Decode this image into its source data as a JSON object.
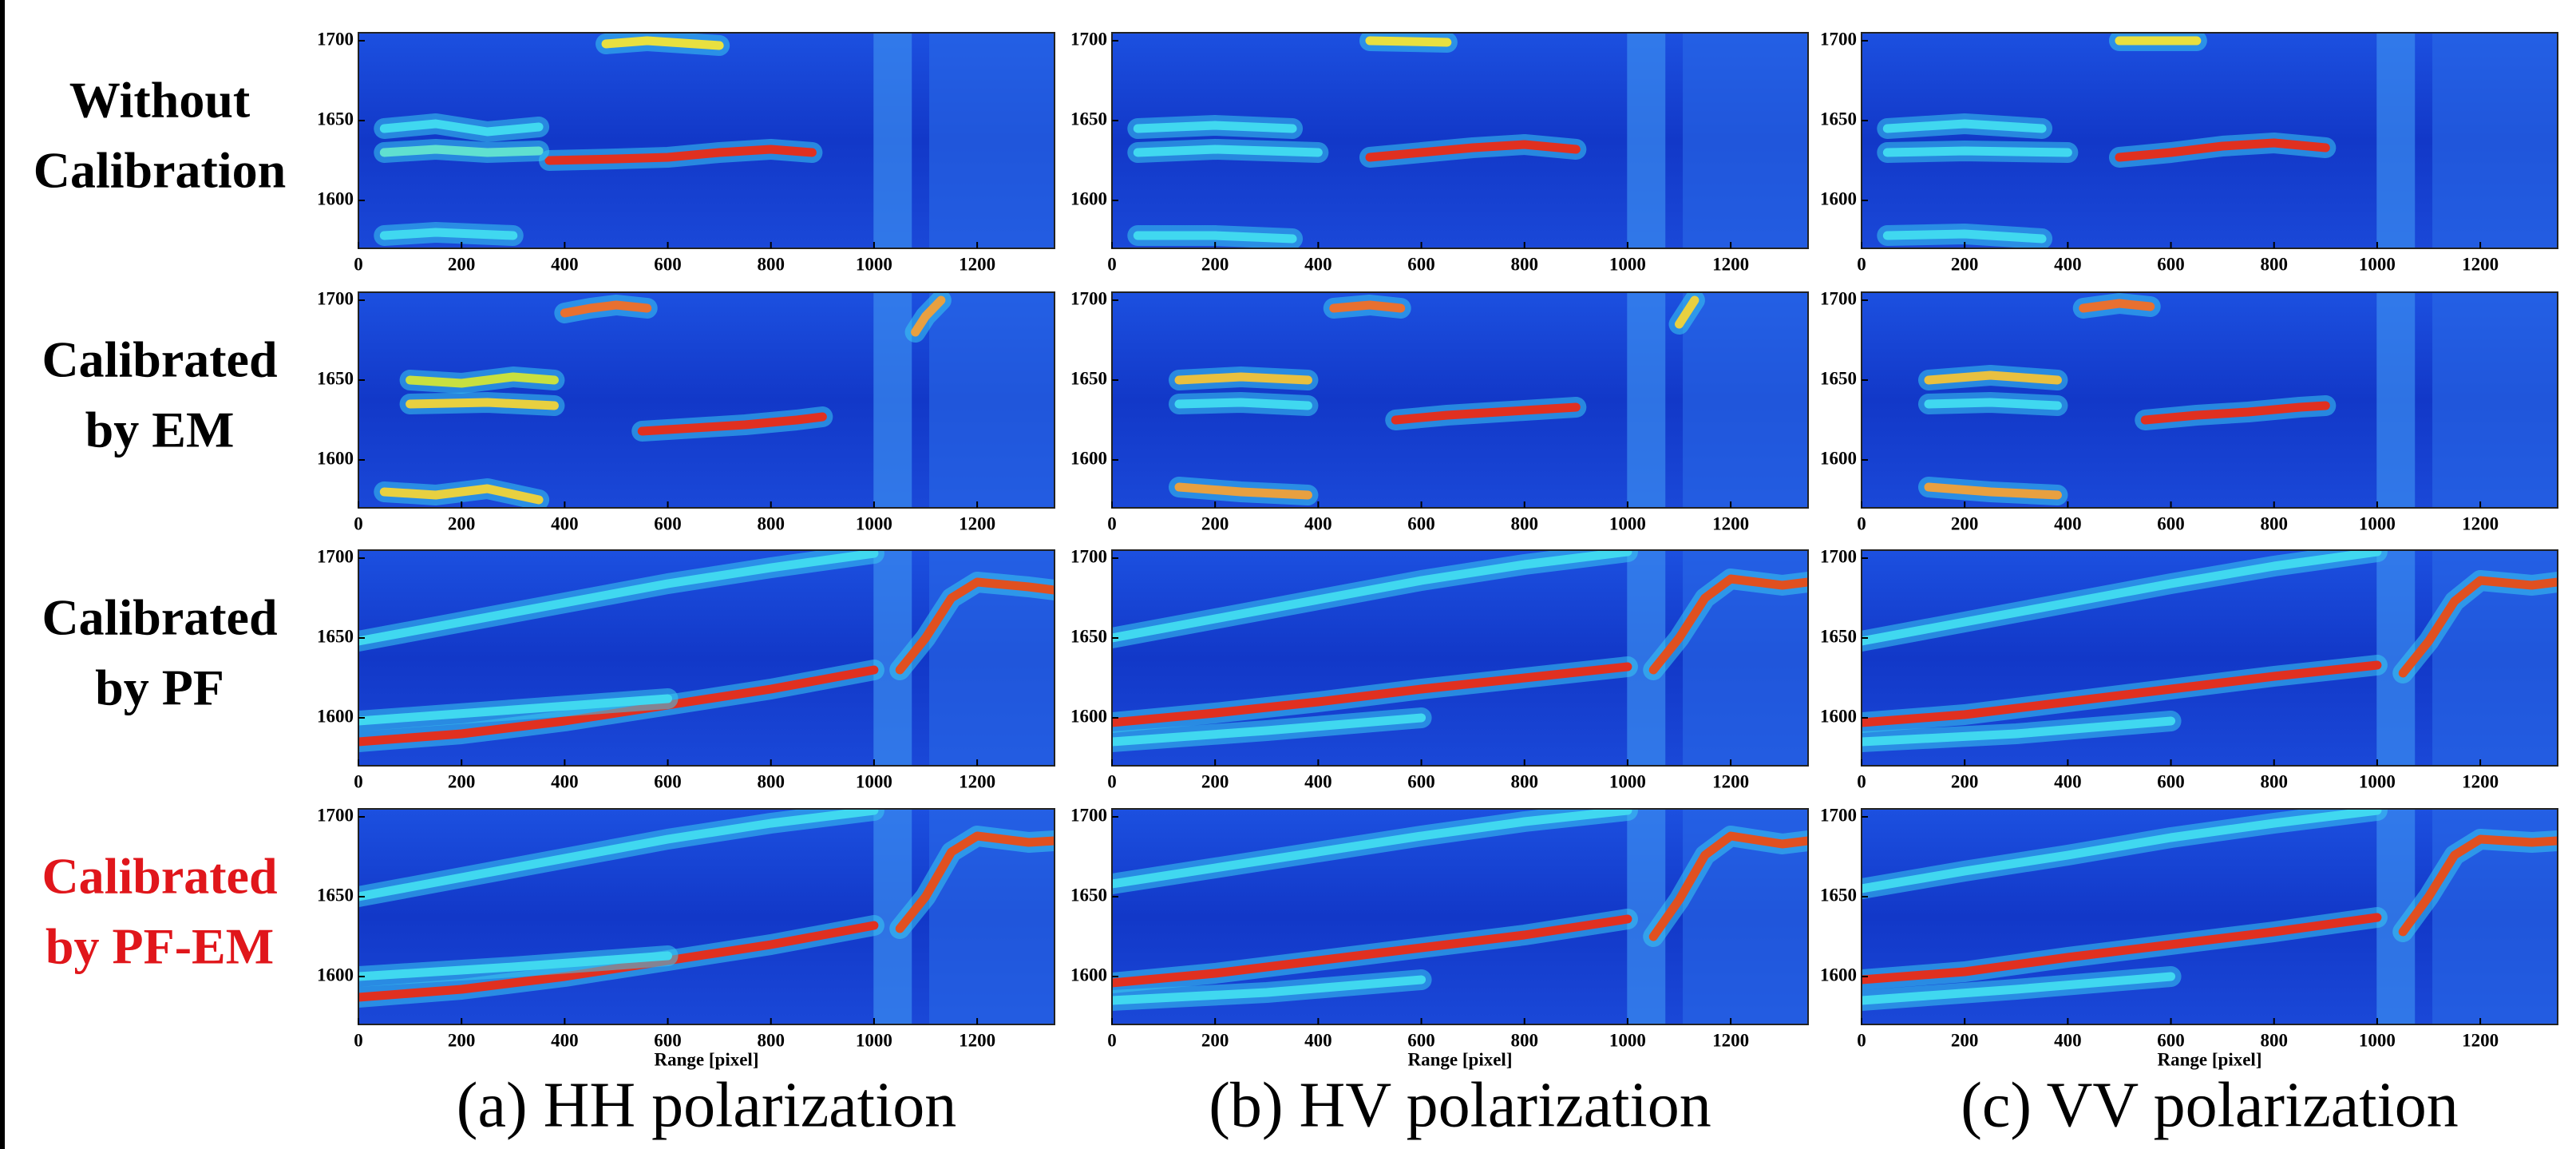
{
  "row_labels": [
    {
      "lines": [
        "Without",
        "Calibration"
      ],
      "color": "#000000"
    },
    {
      "lines": [
        "Calibrated",
        "by EM"
      ],
      "color": "#000000"
    },
    {
      "lines": [
        "Calibrated",
        "by PF"
      ],
      "color": "#000000"
    },
    {
      "lines": [
        "Calibrated",
        "by PF-EM"
      ],
      "color": "#e0161b"
    }
  ],
  "column_titles": [
    "(a) HH polarization",
    "(b) HV polarization",
    "(c) VV polarization"
  ],
  "chart_data": [
    {
      "type": "heatmap",
      "xlim": [
        0,
        1350
      ],
      "ylim": [
        1570,
        1705
      ],
      "xticks": [
        0,
        200,
        400,
        600,
        800,
        1000,
        1200
      ],
      "yticks": [
        1600,
        1650,
        1700
      ],
      "tracks": [
        {
          "x": [
            370,
            500,
            600,
            700,
            800,
            880
          ],
          "y": [
            1625,
            1626,
            1627,
            1630,
            1632,
            1630
          ],
          "color": "#e03020"
        },
        {
          "x": [
            50,
            150,
            250,
            350
          ],
          "y": [
            1645,
            1648,
            1643,
            1646
          ],
          "color": "#40d8f0"
        },
        {
          "x": [
            50,
            150,
            250,
            350
          ],
          "y": [
            1630,
            1632,
            1630,
            1631
          ],
          "color": "#60e0d0"
        },
        {
          "x": [
            50,
            150,
            300
          ],
          "y": [
            1578,
            1580,
            1578
          ],
          "color": "#40d8f0"
        },
        {
          "x": [
            480,
            560,
            700
          ],
          "y": [
            1698,
            1700,
            1697
          ],
          "color": "#e8e040"
        }
      ]
    },
    {
      "type": "heatmap",
      "xlim": [
        0,
        1350
      ],
      "ylim": [
        1570,
        1705
      ],
      "xticks": [
        0,
        200,
        400,
        600,
        800,
        1000,
        1200
      ],
      "yticks": [
        1600,
        1650,
        1700
      ],
      "tracks": [
        {
          "x": [
            500,
            600,
            700,
            800,
            900
          ],
          "y": [
            1627,
            1630,
            1633,
            1635,
            1632
          ],
          "color": "#e03020"
        },
        {
          "x": [
            50,
            200,
            350
          ],
          "y": [
            1645,
            1647,
            1645
          ],
          "color": "#40d8f0"
        },
        {
          "x": [
            50,
            200,
            400
          ],
          "y": [
            1630,
            1632,
            1630
          ],
          "color": "#40d8f0"
        },
        {
          "x": [
            50,
            200,
            350
          ],
          "y": [
            1578,
            1578,
            1576
          ],
          "color": "#40d8f0"
        },
        {
          "x": [
            500,
            650
          ],
          "y": [
            1700,
            1699
          ],
          "color": "#e8e040"
        }
      ]
    },
    {
      "type": "heatmap",
      "xlim": [
        0,
        1350
      ],
      "ylim": [
        1570,
        1705
      ],
      "xticks": [
        0,
        200,
        400,
        600,
        800,
        1000,
        1200
      ],
      "yticks": [
        1600,
        1650,
        1700
      ],
      "tracks": [
        {
          "x": [
            500,
            600,
            700,
            800,
            900
          ],
          "y": [
            1627,
            1630,
            1634,
            1636,
            1633
          ],
          "color": "#e03020"
        },
        {
          "x": [
            50,
            200,
            350
          ],
          "y": [
            1645,
            1648,
            1645
          ],
          "color": "#40d8f0"
        },
        {
          "x": [
            50,
            200,
            400
          ],
          "y": [
            1630,
            1631,
            1630
          ],
          "color": "#40d8f0"
        },
        {
          "x": [
            50,
            200,
            350
          ],
          "y": [
            1578,
            1579,
            1576
          ],
          "color": "#40d8f0"
        },
        {
          "x": [
            500,
            650
          ],
          "y": [
            1700,
            1700
          ],
          "color": "#e8e040"
        }
      ]
    },
    {
      "type": "heatmap",
      "xlim": [
        0,
        1350
      ],
      "ylim": [
        1570,
        1705
      ],
      "xticks": [
        0,
        200,
        400,
        600,
        800,
        1000,
        1200
      ],
      "yticks": [
        1600,
        1650,
        1700
      ],
      "tracks": [
        {
          "x": [
            100,
            200,
            300,
            380
          ],
          "y": [
            1650,
            1648,
            1652,
            1650
          ],
          "color": "#c8e040"
        },
        {
          "x": [
            100,
            250,
            380
          ],
          "y": [
            1635,
            1636,
            1634
          ],
          "color": "#e8d040"
        },
        {
          "x": [
            550,
            650,
            750,
            850,
            900
          ],
          "y": [
            1618,
            1620,
            1622,
            1625,
            1627
          ],
          "color": "#e03020"
        },
        {
          "x": [
            400,
            450,
            500,
            560
          ],
          "y": [
            1692,
            1695,
            1697,
            1695
          ],
          "color": "#e87030"
        },
        {
          "x": [
            50,
            150,
            250,
            350
          ],
          "y": [
            1580,
            1578,
            1582,
            1575
          ],
          "color": "#e8d040"
        },
        {
          "x": [
            1080,
            1100,
            1130
          ],
          "y": [
            1680,
            1690,
            1700
          ],
          "color": "#e8a040"
        }
      ]
    },
    {
      "type": "heatmap",
      "xlim": [
        0,
        1350
      ],
      "ylim": [
        1570,
        1705
      ],
      "xticks": [
        0,
        200,
        400,
        600,
        800,
        1000,
        1200
      ],
      "yticks": [
        1600,
        1650,
        1700
      ],
      "tracks": [
        {
          "x": [
            130,
            250,
            380
          ],
          "y": [
            1650,
            1652,
            1650
          ],
          "color": "#e8c040"
        },
        {
          "x": [
            130,
            250,
            380
          ],
          "y": [
            1635,
            1636,
            1634
          ],
          "color": "#40d8f0"
        },
        {
          "x": [
            550,
            650,
            750,
            850,
            900
          ],
          "y": [
            1625,
            1628,
            1630,
            1632,
            1633
          ],
          "color": "#e03020"
        },
        {
          "x": [
            430,
            500,
            560
          ],
          "y": [
            1695,
            1697,
            1695
          ],
          "color": "#e87030"
        },
        {
          "x": [
            130,
            250,
            380
          ],
          "y": [
            1583,
            1580,
            1578
          ],
          "color": "#e8a040"
        },
        {
          "x": [
            1100,
            1130
          ],
          "y": [
            1685,
            1700
          ],
          "color": "#e8d040"
        }
      ]
    },
    {
      "type": "heatmap",
      "xlim": [
        0,
        1350
      ],
      "ylim": [
        1570,
        1705
      ],
      "xticks": [
        0,
        200,
        400,
        600,
        800,
        1000,
        1200
      ],
      "yticks": [
        1600,
        1650,
        1700
      ],
      "tracks": [
        {
          "x": [
            130,
            250,
            380
          ],
          "y": [
            1650,
            1653,
            1650
          ],
          "color": "#e8c040"
        },
        {
          "x": [
            130,
            250,
            380
          ],
          "y": [
            1635,
            1636,
            1634
          ],
          "color": "#40d8f0"
        },
        {
          "x": [
            550,
            650,
            750,
            850,
            900
          ],
          "y": [
            1625,
            1628,
            1630,
            1633,
            1634
          ],
          "color": "#e03020"
        },
        {
          "x": [
            430,
            500,
            560
          ],
          "y": [
            1695,
            1698,
            1696
          ],
          "color": "#e87030"
        },
        {
          "x": [
            130,
            250,
            380
          ],
          "y": [
            1583,
            1580,
            1578
          ],
          "color": "#e8a040"
        }
      ]
    },
    {
      "type": "heatmap",
      "xlim": [
        0,
        1350
      ],
      "ylim": [
        1570,
        1705
      ],
      "xticks": [
        0,
        200,
        400,
        600,
        800,
        1000,
        1200
      ],
      "yticks": [
        1600,
        1650,
        1700
      ],
      "tracks": [
        {
          "x": [
            0,
            200,
            400,
            600,
            800,
            1000
          ],
          "y": [
            1585,
            1590,
            1598,
            1608,
            1618,
            1630
          ],
          "color": "#e03020"
        },
        {
          "x": [
            0,
            200,
            400,
            600,
            800,
            1000
          ],
          "y": [
            1648,
            1660,
            1672,
            1684,
            1694,
            1703
          ],
          "color": "#40d8f0"
        },
        {
          "x": [
            1050,
            1100,
            1150,
            1200,
            1300,
            1350
          ],
          "y": [
            1630,
            1650,
            1675,
            1685,
            1682,
            1680
          ],
          "color": "#e05020"
        },
        {
          "x": [
            0,
            300,
            600
          ],
          "y": [
            1598,
            1605,
            1612
          ],
          "color": "#40d8f0"
        }
      ]
    },
    {
      "type": "heatmap",
      "xlim": [
        0,
        1350
      ],
      "ylim": [
        1570,
        1705
      ],
      "xticks": [
        0,
        200,
        400,
        600,
        800,
        1000,
        1200
      ],
      "yticks": [
        1600,
        1650,
        1700
      ],
      "tracks": [
        {
          "x": [
            0,
            200,
            400,
            600,
            800,
            1000
          ],
          "y": [
            1597,
            1603,
            1610,
            1618,
            1625,
            1632
          ],
          "color": "#e03020"
        },
        {
          "x": [
            0,
            200,
            400,
            600,
            800,
            1000
          ],
          "y": [
            1650,
            1662,
            1674,
            1686,
            1696,
            1704
          ],
          "color": "#40d8f0"
        },
        {
          "x": [
            1050,
            1100,
            1150,
            1200,
            1300,
            1350
          ],
          "y": [
            1630,
            1650,
            1675,
            1687,
            1683,
            1685
          ],
          "color": "#e05020"
        },
        {
          "x": [
            0,
            300,
            600
          ],
          "y": [
            1585,
            1592,
            1600
          ],
          "color": "#40d8f0"
        }
      ]
    },
    {
      "type": "heatmap",
      "xlim": [
        0,
        1350
      ],
      "ylim": [
        1570,
        1705
      ],
      "xticks": [
        0,
        200,
        400,
        600,
        800,
        1000,
        1200
      ],
      "yticks": [
        1600,
        1650,
        1700
      ],
      "tracks": [
        {
          "x": [
            0,
            200,
            400,
            600,
            800,
            1000
          ],
          "y": [
            1597,
            1602,
            1610,
            1618,
            1626,
            1633
          ],
          "color": "#e03020"
        },
        {
          "x": [
            0,
            200,
            400,
            600,
            800,
            1000
          ],
          "y": [
            1648,
            1660,
            1672,
            1684,
            1695,
            1704
          ],
          "color": "#40d8f0"
        },
        {
          "x": [
            1050,
            1100,
            1150,
            1200,
            1300,
            1350
          ],
          "y": [
            1628,
            1648,
            1673,
            1686,
            1683,
            1685
          ],
          "color": "#e05020"
        },
        {
          "x": [
            0,
            300,
            600
          ],
          "y": [
            1585,
            1590,
            1598
          ],
          "color": "#40d8f0"
        }
      ]
    },
    {
      "type": "heatmap",
      "xlim": [
        0,
        1350
      ],
      "ylim": [
        1570,
        1705
      ],
      "xticks": [
        0,
        200,
        400,
        600,
        800,
        1000,
        1200
      ],
      "yticks": [
        1600,
        1650,
        1700
      ],
      "x_label": "Range [pixel]",
      "tracks": [
        {
          "x": [
            0,
            200,
            400,
            600,
            800,
            1000
          ],
          "y": [
            1587,
            1592,
            1600,
            1610,
            1620,
            1632
          ],
          "color": "#e03020"
        },
        {
          "x": [
            0,
            200,
            400,
            600,
            800,
            1000
          ],
          "y": [
            1650,
            1662,
            1674,
            1686,
            1696,
            1704
          ],
          "color": "#40d8f0"
        },
        {
          "x": [
            1050,
            1100,
            1150,
            1200,
            1300,
            1350
          ],
          "y": [
            1630,
            1650,
            1678,
            1688,
            1684,
            1685
          ],
          "color": "#e05020"
        },
        {
          "x": [
            0,
            300,
            600
          ],
          "y": [
            1600,
            1606,
            1613
          ],
          "color": "#40d8f0"
        }
      ]
    },
    {
      "type": "heatmap",
      "xlim": [
        0,
        1350
      ],
      "ylim": [
        1570,
        1705
      ],
      "xticks": [
        0,
        200,
        400,
        600,
        800,
        1000,
        1200
      ],
      "yticks": [
        1600,
        1650,
        1700
      ],
      "x_label": "Range [pixel]",
      "tracks": [
        {
          "x": [
            0,
            200,
            400,
            600,
            800,
            1000
          ],
          "y": [
            1596,
            1602,
            1610,
            1618,
            1626,
            1636
          ],
          "color": "#e03020"
        },
        {
          "x": [
            0,
            200,
            400,
            600,
            800,
            1000
          ],
          "y": [
            1658,
            1668,
            1678,
            1688,
            1697,
            1704
          ],
          "color": "#40d8f0"
        },
        {
          "x": [
            1050,
            1100,
            1150,
            1200,
            1300,
            1350
          ],
          "y": [
            1625,
            1648,
            1676,
            1688,
            1683,
            1685
          ],
          "color": "#e05020"
        },
        {
          "x": [
            0,
            300,
            600
          ],
          "y": [
            1585,
            1590,
            1598
          ],
          "color": "#40d8f0"
        }
      ]
    },
    {
      "type": "heatmap",
      "xlim": [
        0,
        1350
      ],
      "ylim": [
        1570,
        1705
      ],
      "xticks": [
        0,
        200,
        400,
        600,
        800,
        1000,
        1200
      ],
      "yticks": [
        1600,
        1650,
        1700
      ],
      "x_label": "Range [pixel]",
      "tracks": [
        {
          "x": [
            0,
            200,
            400,
            600,
            800,
            1000
          ],
          "y": [
            1598,
            1603,
            1612,
            1620,
            1628,
            1637
          ],
          "color": "#e03020"
        },
        {
          "x": [
            0,
            200,
            400,
            600,
            800,
            1000
          ],
          "y": [
            1655,
            1666,
            1676,
            1687,
            1696,
            1704
          ],
          "color": "#40d8f0"
        },
        {
          "x": [
            1050,
            1100,
            1150,
            1200,
            1300,
            1350
          ],
          "y": [
            1628,
            1650,
            1676,
            1686,
            1684,
            1685
          ],
          "color": "#e05020"
        },
        {
          "x": [
            0,
            300,
            600
          ],
          "y": [
            1585,
            1592,
            1600
          ],
          "color": "#40d8f0"
        }
      ]
    }
  ]
}
